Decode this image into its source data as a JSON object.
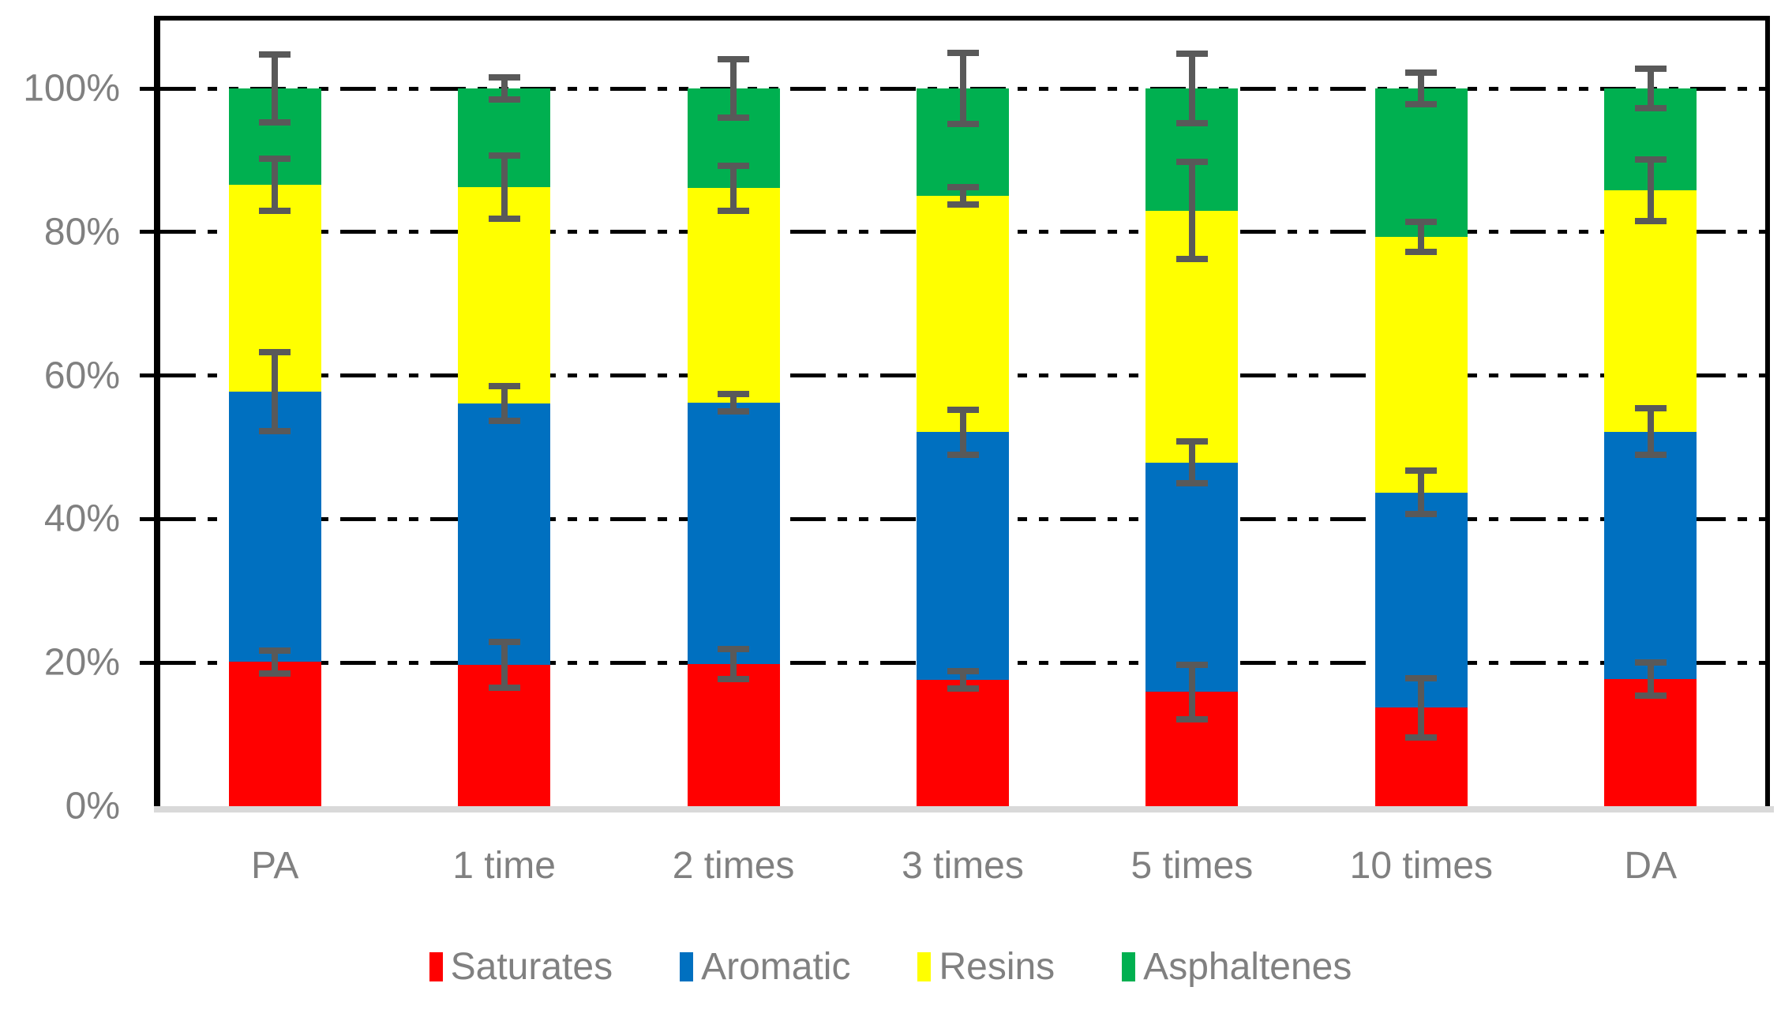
{
  "chart_data": {
    "type": "bar",
    "stacked": true,
    "title": "",
    "categories": [
      "PA",
      "1 time",
      "2 times",
      "3 times",
      "5 times",
      "10 times",
      "DA"
    ],
    "series": [
      {
        "name": "Saturates",
        "color": "#FF0000",
        "values": [
          20.1,
          19.7,
          19.8,
          17.6,
          15.9,
          13.7,
          17.7
        ]
      },
      {
        "name": "Aromatic",
        "color": "#0070C0",
        "values": [
          37.7,
          36.4,
          36.4,
          34.5,
          32.0,
          30.0,
          34.5
        ]
      },
      {
        "name": "Resins",
        "color": "#FFFF00",
        "values": [
          28.8,
          30.1,
          29.9,
          32.9,
          35.1,
          35.6,
          33.6
        ]
      },
      {
        "name": "Asphaltenes",
        "color": "#00B050",
        "values": [
          13.4,
          13.8,
          13.9,
          15.0,
          17.0,
          20.7,
          14.2
        ]
      }
    ],
    "error_bars": {
      "color": "#595959",
      "note": "plus_minus values apply to the cumulative tops of Saturates, Aromatic, Resins, Asphaltenes (in percent)",
      "per_category": [
        {
          "category": "PA",
          "plus_minus": [
            1.6,
            5.5,
            3.6,
            4.7
          ]
        },
        {
          "category": "1 time",
          "plus_minus": [
            3.2,
            2.4,
            4.4,
            1.5
          ]
        },
        {
          "category": "2 times",
          "plus_minus": [
            2.1,
            1.2,
            3.1,
            4.1
          ]
        },
        {
          "category": "3 times",
          "plus_minus": [
            1.2,
            3.1,
            1.2,
            5.0
          ]
        },
        {
          "category": "5 times",
          "plus_minus": [
            3.8,
            2.9,
            6.8,
            4.8
          ]
        },
        {
          "category": "10 times",
          "plus_minus": [
            4.1,
            3.0,
            2.1,
            2.2
          ]
        },
        {
          "category": "DA",
          "plus_minus": [
            2.3,
            3.2,
            4.3,
            2.7
          ]
        }
      ]
    },
    "y_axis": {
      "tick_labels": [
        "0%",
        "20%",
        "40%",
        "60%",
        "80%",
        "100%"
      ],
      "tick_values": [
        0,
        20,
        40,
        60,
        80,
        100
      ],
      "ylim": [
        0,
        100
      ],
      "text_color": "#808080"
    },
    "x_axis": {
      "text_color": "#808080"
    },
    "grid": {
      "style": "dash-dot-dot",
      "color": "#000000",
      "on_values": [
        20,
        40,
        60,
        80,
        100
      ]
    },
    "legend": {
      "position": "bottom",
      "entries": [
        {
          "label": "Saturates",
          "color": "#FF0000"
        },
        {
          "label": "Aromatic",
          "color": "#0070C0"
        },
        {
          "label": "Resins",
          "color": "#FFFF00"
        },
        {
          "label": "Asphaltenes",
          "color": "#00B050"
        }
      ]
    }
  }
}
